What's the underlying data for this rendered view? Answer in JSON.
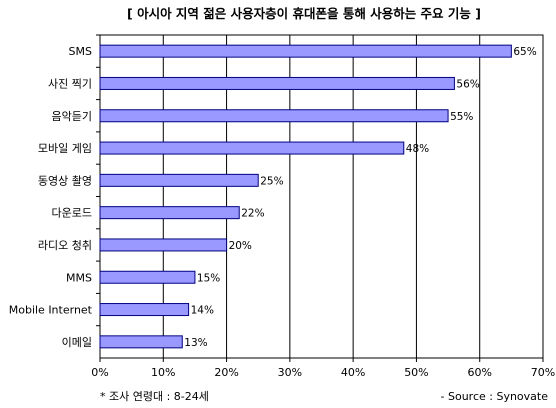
{
  "chart_data": {
    "type": "bar",
    "orientation": "horizontal",
    "title": "[ 아시아 지역 젊은 사용자층이 휴대폰을 통해 사용하는 주요 기능 ]",
    "categories": [
      "SMS",
      "사진 찍기",
      "음악듣기",
      "모바일 게임",
      "동영상 촬영",
      "다운로드",
      "라디오 청취",
      "MMS",
      "Mobile Internet",
      "이메일"
    ],
    "values": [
      65,
      56,
      55,
      48,
      25,
      22,
      20,
      15,
      14,
      13
    ],
    "data_labels": [
      "65%",
      "56%",
      "55%",
      "48%",
      "25%",
      "22%",
      "20%",
      "15%",
      "14%",
      "13%"
    ],
    "xlim": [
      0,
      70
    ],
    "xticks": [
      "0%",
      "10%",
      "20%",
      "30%",
      "40%",
      "50%",
      "60%",
      "70%"
    ],
    "grid": "vertical",
    "legend": "none",
    "bar_color": "#9999ff",
    "bar_border": "#000080",
    "footnote": "* 조사 연령대 : 8-24세",
    "source": "- Source : Synovate"
  }
}
